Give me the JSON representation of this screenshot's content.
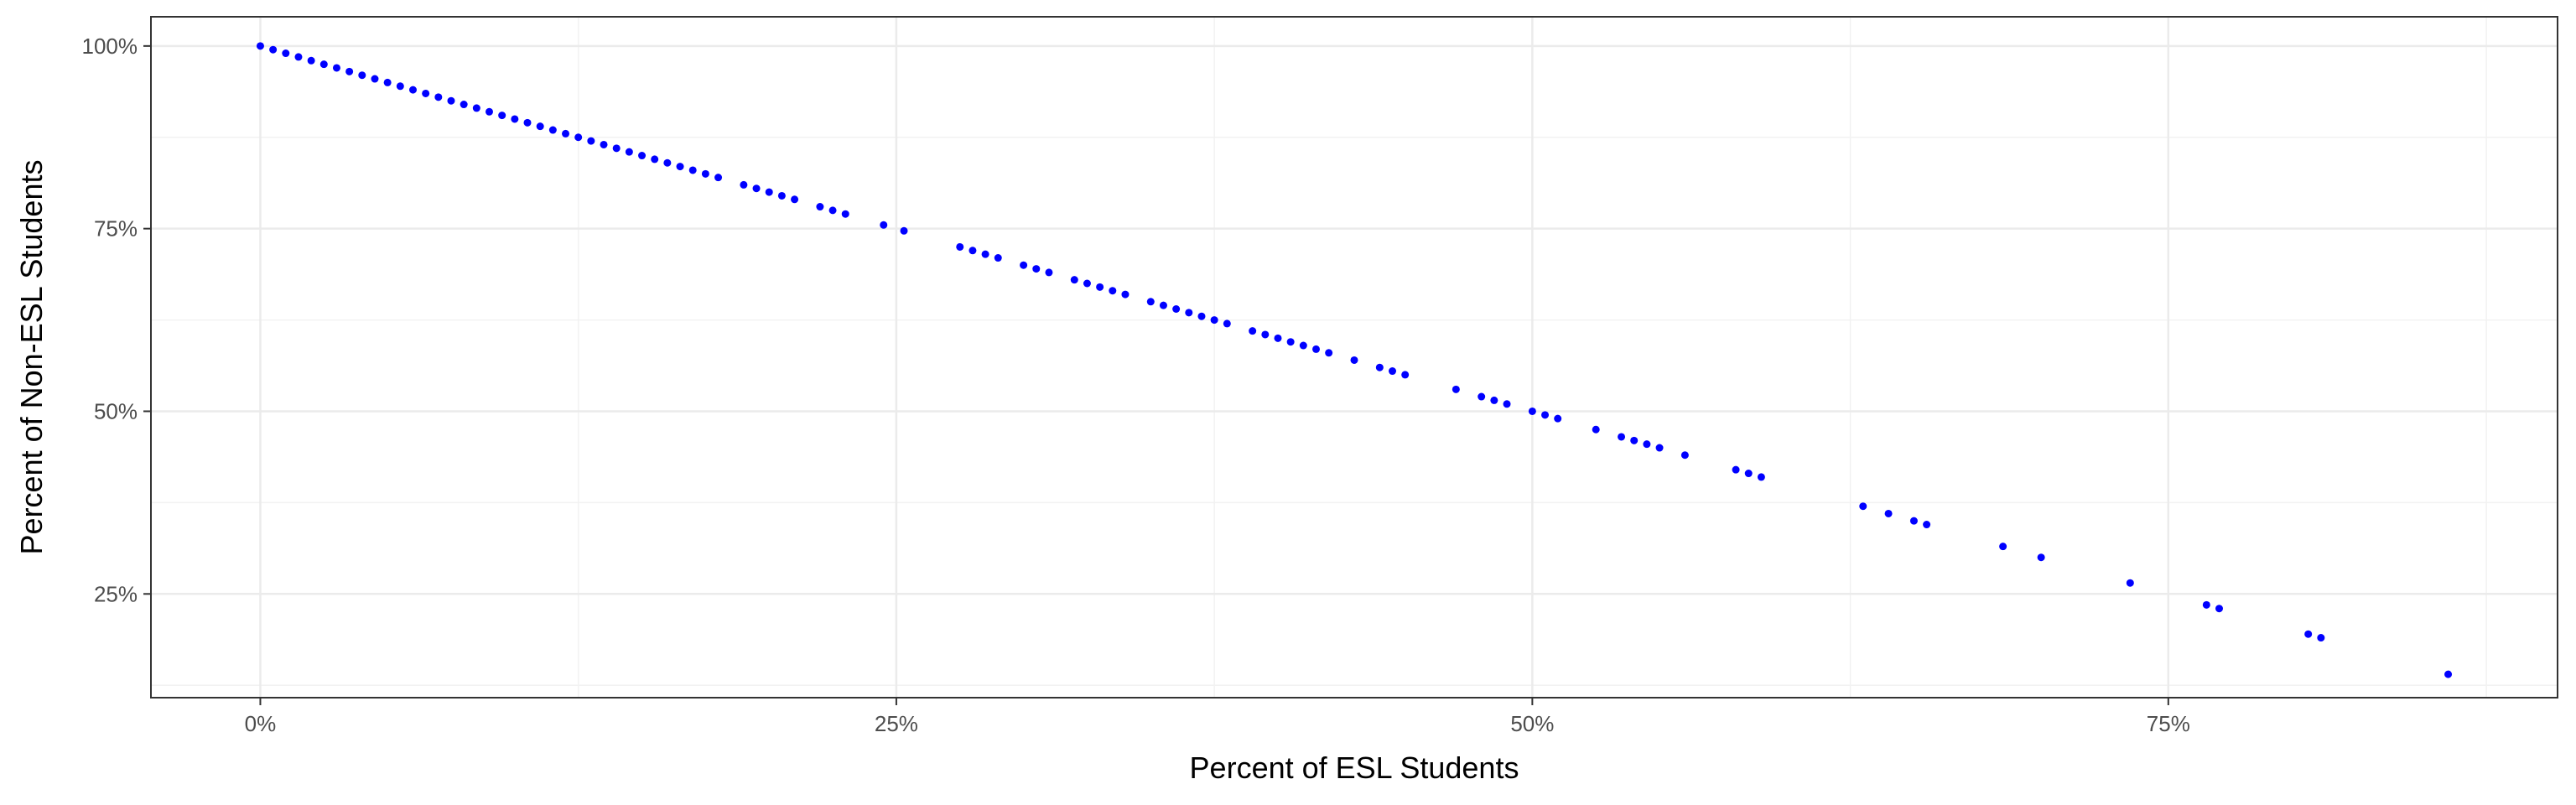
{
  "chart_data": {
    "type": "scatter",
    "xlabel": "Percent of ESL Students",
    "ylabel": "Percent of Non-ESL Students",
    "xlim": [
      -0.043,
      0.903
    ],
    "ylim": [
      0.108,
      1.04
    ],
    "x_ticks": [
      0,
      0.25,
      0.5,
      0.75
    ],
    "x_tick_labels": [
      "0%",
      "25%",
      "50%",
      "75%"
    ],
    "y_ticks": [
      0.25,
      0.5,
      0.75,
      1.0
    ],
    "y_tick_labels": [
      "25%",
      "50%",
      "75%",
      "100%"
    ],
    "grid": true,
    "legend": "none",
    "point_color": "#0000ff",
    "series": [
      {
        "x": [
          0,
          0.005,
          0.01,
          0.015,
          0.02,
          0.025,
          0.03,
          0.035,
          0.04,
          0.045,
          0.05,
          0.055,
          0.06,
          0.065,
          0.07,
          0.075,
          0.08,
          0.085,
          0.09,
          0.095,
          0.1,
          0.105,
          0.11,
          0.115,
          0.12,
          0.125,
          0.13,
          0.135,
          0.14,
          0.145,
          0.15,
          0.155,
          0.16,
          0.165,
          0.17,
          0.175,
          0.18,
          0.19,
          0.195,
          0.2,
          0.205,
          0.21,
          0.22,
          0.225,
          0.23,
          0.245,
          0.253,
          0.275,
          0.28,
          0.285,
          0.29,
          0.3,
          0.305,
          0.31,
          0.32,
          0.325,
          0.33,
          0.335,
          0.34,
          0.35,
          0.355,
          0.36,
          0.365,
          0.37,
          0.375,
          0.38,
          0.39,
          0.395,
          0.4,
          0.405,
          0.41,
          0.415,
          0.42,
          0.43,
          0.44,
          0.445,
          0.45,
          0.47,
          0.48,
          0.485,
          0.49,
          0.5,
          0.505,
          0.51,
          0.525,
          0.535,
          0.54,
          0.545,
          0.55,
          0.56,
          0.58,
          0.585,
          0.59,
          0.63,
          0.64,
          0.65,
          0.655,
          0.685,
          0.7,
          0.735,
          0.765,
          0.77,
          0.805,
          0.81,
          0.86
        ],
        "y": [
          1,
          0.995,
          0.99,
          0.985,
          0.98,
          0.975,
          0.97,
          0.965,
          0.96,
          0.955,
          0.95,
          0.945,
          0.94,
          0.935,
          0.93,
          0.925,
          0.92,
          0.915,
          0.91,
          0.905,
          0.9,
          0.895,
          0.89,
          0.885,
          0.88,
          0.875,
          0.87,
          0.865,
          0.86,
          0.855,
          0.85,
          0.845,
          0.84,
          0.835,
          0.83,
          0.825,
          0.82,
          0.81,
          0.805,
          0.8,
          0.795,
          0.79,
          0.78,
          0.775,
          0.77,
          0.755,
          0.747,
          0.725,
          0.72,
          0.715,
          0.71,
          0.7,
          0.695,
          0.69,
          0.68,
          0.675,
          0.67,
          0.665,
          0.66,
          0.65,
          0.645,
          0.64,
          0.635,
          0.63,
          0.625,
          0.62,
          0.61,
          0.605,
          0.6,
          0.595,
          0.59,
          0.585,
          0.58,
          0.57,
          0.56,
          0.555,
          0.55,
          0.53,
          0.52,
          0.515,
          0.51,
          0.5,
          0.495,
          0.49,
          0.475,
          0.465,
          0.46,
          0.455,
          0.45,
          0.44,
          0.42,
          0.415,
          0.41,
          0.37,
          0.36,
          0.35,
          0.345,
          0.315,
          0.3,
          0.265,
          0.235,
          0.23,
          0.195,
          0.19,
          0.14
        ]
      }
    ]
  }
}
